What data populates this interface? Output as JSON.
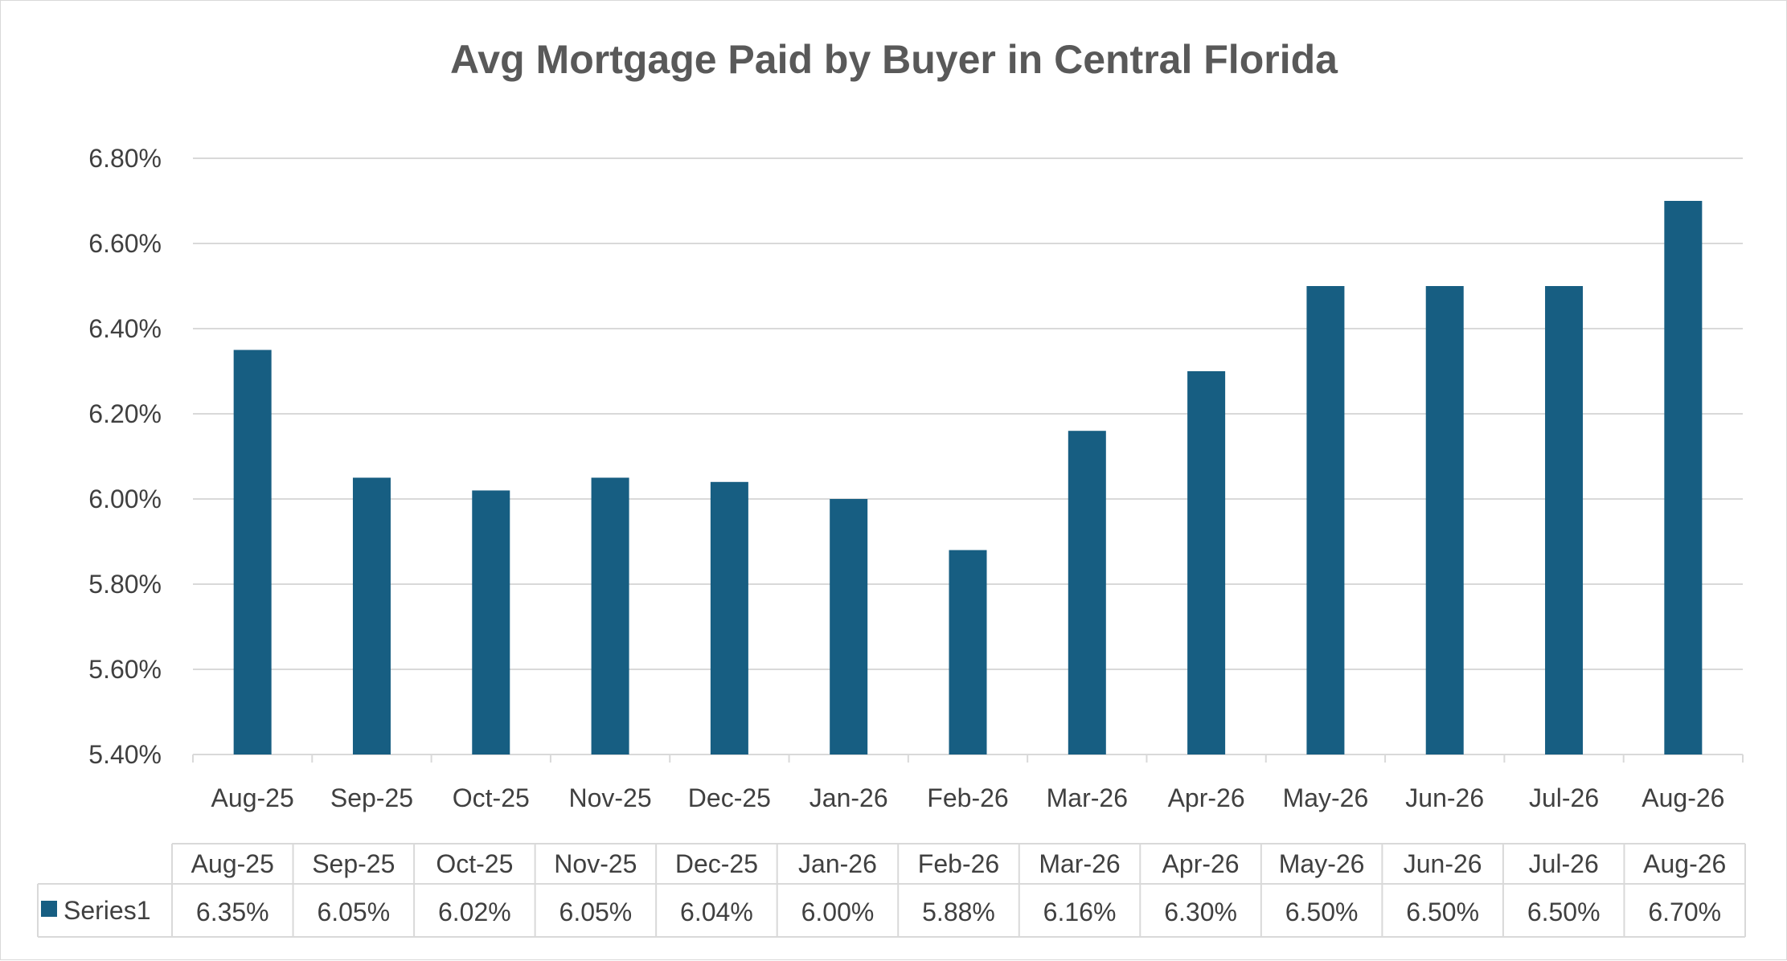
{
  "chart_data": {
    "type": "bar",
    "title": "Avg Mortgage Paid by Buyer in Central Florida",
    "categories": [
      "Aug-25",
      "Sep-25",
      "Oct-25",
      "Nov-25",
      "Dec-25",
      "Jan-26",
      "Feb-26",
      "Mar-26",
      "Apr-26",
      "May-26",
      "Jun-26",
      "Jul-26",
      "Aug-26"
    ],
    "series": [
      {
        "name": "Series1",
        "values": [
          6.35,
          6.05,
          6.02,
          6.05,
          6.04,
          6.0,
          5.88,
          6.16,
          6.3,
          6.5,
          6.5,
          6.5,
          6.7
        ],
        "labels": [
          "6.35%",
          "6.05%",
          "6.02%",
          "6.05%",
          "6.04%",
          "6.00%",
          "5.88%",
          "6.16%",
          "6.30%",
          "6.50%",
          "6.50%",
          "6.50%",
          "6.70%"
        ],
        "color": "#175e82"
      }
    ],
    "ylim": [
      5.4,
      6.8
    ],
    "yticks": [
      "5.40%",
      "5.60%",
      "5.80%",
      "6.00%",
      "6.20%",
      "6.40%",
      "6.60%",
      "6.80%"
    ],
    "grid": true,
    "legend": "data-table",
    "data_table": true,
    "colors": {
      "bar": "#175e82",
      "grid": "#d9d9d9",
      "text": "#404040",
      "title": "#595959"
    }
  }
}
